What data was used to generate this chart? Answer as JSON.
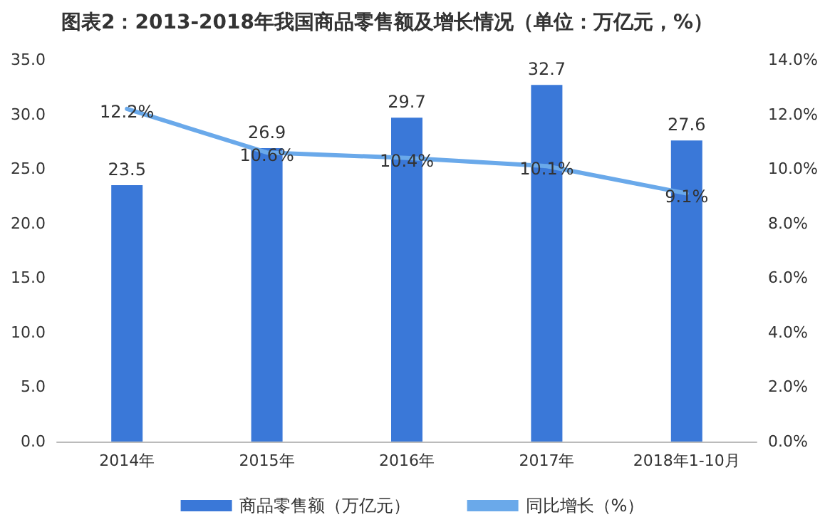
{
  "chart_data": {
    "type": "bar",
    "title": "图表2：2013-2018年我国商品零售额及增长情况（单位：万亿元，%）",
    "categories": [
      "2014年",
      "2015年",
      "2016年",
      "2017年",
      "2018年1-10月"
    ],
    "series": [
      {
        "name": "商品零售额（万亿元）",
        "color": "#3a78d8",
        "values": [
          23.5,
          26.9,
          29.7,
          32.7,
          27.6
        ],
        "value_labels": [
          "23.5",
          "26.9",
          "29.7",
          "32.7",
          "27.6"
        ]
      },
      {
        "name": "同比增长（%）",
        "type": "line",
        "axis": "y2",
        "color": "#6aa9ea",
        "values": [
          12.2,
          10.6,
          10.4,
          10.1,
          9.1
        ],
        "value_labels": [
          "12.2%",
          "10.6%",
          "10.4%",
          "10.1%",
          "9.1%"
        ]
      }
    ],
    "ylim": [
      0,
      35
    ],
    "yticks": [
      {
        "value": 0,
        "label": "0.0"
      },
      {
        "value": 5,
        "label": "5.0"
      },
      {
        "value": 10,
        "label": "10.0"
      },
      {
        "value": 15,
        "label": "15.0"
      },
      {
        "value": 20,
        "label": "20.0"
      },
      {
        "value": 25,
        "label": "25.0"
      },
      {
        "value": 30,
        "label": "30.0"
      },
      {
        "value": 35,
        "label": "35.0"
      }
    ],
    "y2lim": [
      0,
      14
    ],
    "y2ticks": [
      {
        "value": 0,
        "label": "0.0%"
      },
      {
        "value": 2,
        "label": "2.0%"
      },
      {
        "value": 4,
        "label": "4.0%"
      },
      {
        "value": 6,
        "label": "6.0%"
      },
      {
        "value": 8,
        "label": "8.0%"
      },
      {
        "value": 10,
        "label": "10.0%"
      },
      {
        "value": 12,
        "label": "12.0%"
      },
      {
        "value": 14,
        "label": "14.0%"
      }
    ],
    "grid": false,
    "legend": "bottom",
    "marker": "none",
    "line_style": "solid"
  }
}
